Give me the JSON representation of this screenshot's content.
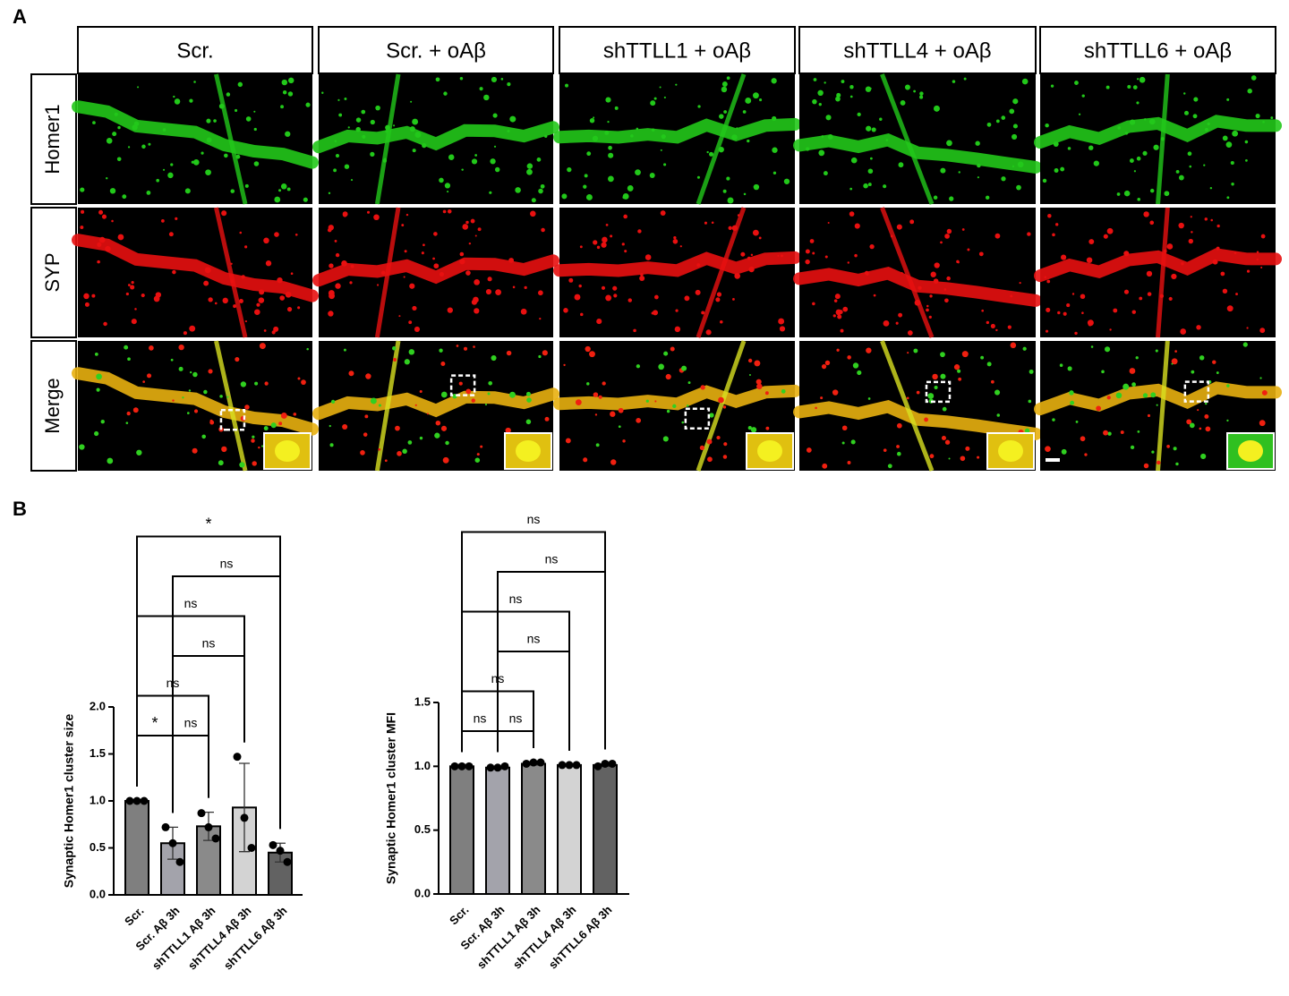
{
  "panel_a": {
    "label": "A",
    "columns": [
      "Scr.",
      "Scr. + oAβ",
      "shTTLL1 + oAβ",
      "shTTLL4 + oAβ",
      "shTTLL6 + oAβ"
    ],
    "rows": [
      "Homer1",
      "SYP",
      "Merge"
    ]
  },
  "panel_b": {
    "label": "B"
  },
  "chart_data": [
    {
      "type": "bar",
      "ylabel": "Synaptic Homer1 cluster size",
      "categories": [
        "Scr.",
        "Scr. Aβ 3h",
        "shTTLL1 Aβ 3h",
        "shTTLL4 Aβ 3h",
        "shTTLL6 Aβ 3h"
      ],
      "values": [
        1.0,
        0.55,
        0.73,
        0.93,
        0.45
      ],
      "errors": [
        0,
        0.17,
        0.15,
        0.47,
        0.1
      ],
      "points": [
        [
          1,
          1,
          1
        ],
        [
          0.72,
          0.55,
          0.35
        ],
        [
          0.87,
          0.72,
          0.6
        ],
        [
          1.47,
          0.82,
          0.5
        ],
        [
          0.53,
          0.47,
          0.35
        ]
      ],
      "colors": [
        "#7f7f7f",
        "#a3a3ab",
        "#8a8a8a",
        "#d3d3d3",
        "#626262"
      ],
      "ylim": [
        0,
        2.0
      ],
      "yticks": [
        {
          "value": 0,
          "label": "0.0"
        },
        0.5,
        {
          "value": 1,
          "label": "1.0"
        },
        1.5,
        {
          "value": 2,
          "label": "2.0"
        }
      ],
      "comparisons": [
        {
          "from": 0,
          "to": 1,
          "label": "*"
        },
        {
          "from": 1,
          "to": 2,
          "label": "ns"
        },
        {
          "from": 0,
          "to": 2,
          "label": "ns"
        },
        {
          "from": 1,
          "to": 3,
          "label": "ns"
        },
        {
          "from": 0,
          "to": 3,
          "label": "ns"
        },
        {
          "from": 1,
          "to": 4,
          "label": "ns"
        },
        {
          "from": 0,
          "to": 4,
          "label": "*"
        }
      ]
    },
    {
      "type": "bar",
      "ylabel": "Synaptic Homer1 cluster MFI",
      "categories": [
        "Scr.",
        "Scr. Aβ 3h",
        "shTTLL1 Aβ 3h",
        "shTTLL4 Aβ 3h",
        "shTTLL6 Aβ 3h"
      ],
      "values": [
        1.0,
        0.99,
        1.02,
        1.01,
        1.01
      ],
      "errors": [
        0,
        0.01,
        0.01,
        0,
        0.01
      ],
      "points": [
        [
          1,
          1,
          1
        ],
        [
          0.99,
          0.99,
          1.0
        ],
        [
          1.02,
          1.03,
          1.03
        ],
        [
          1.01,
          1.01,
          1.01
        ],
        [
          1.0,
          1.02,
          1.02
        ]
      ],
      "colors": [
        "#7f7f7f",
        "#a3a3ab",
        "#8a8a8a",
        "#d3d3d3",
        "#626262"
      ],
      "ylim": [
        0,
        1.5
      ],
      "yticks": [
        {
          "value": 0,
          "label": "0.0"
        },
        0.5,
        {
          "value": 1,
          "label": "1.0"
        },
        1.5
      ],
      "comparisons": [
        {
          "from": 0,
          "to": 1,
          "label": "ns"
        },
        {
          "from": 1,
          "to": 2,
          "label": "ns"
        },
        {
          "from": 0,
          "to": 2,
          "label": "ns"
        },
        {
          "from": 1,
          "to": 3,
          "label": "ns"
        },
        {
          "from": 0,
          "to": 3,
          "label": "ns"
        },
        {
          "from": 1,
          "to": 4,
          "label": "ns"
        },
        {
          "from": 0,
          "to": 4,
          "label": "ns"
        }
      ]
    }
  ]
}
